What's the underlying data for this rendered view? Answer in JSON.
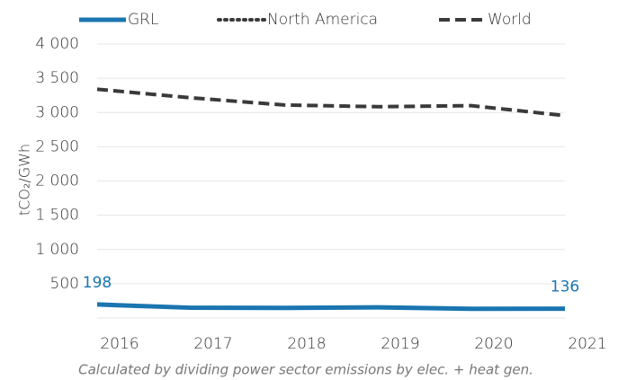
{
  "chart_data": {
    "type": "line",
    "x": [
      2016,
      2017,
      2018,
      2019,
      2020,
      2021
    ],
    "xlim": [
      2016,
      2021
    ],
    "y_label": "tCO₂/GWh",
    "ylim": [
      0,
      4000
    ],
    "yticks": [
      500,
      {
        "value": 1000,
        "label": "1 000"
      },
      {
        "value": 1500,
        "label": "1 500"
      },
      {
        "value": 2000,
        "label": "2 000"
      },
      {
        "value": 2500,
        "label": "2 500"
      },
      {
        "value": 3000,
        "label": "3 000"
      },
      {
        "value": 3500,
        "label": "3 500"
      },
      {
        "value": 4000,
        "label": "4 000"
      }
    ],
    "grid": true,
    "legend": "top",
    "series": [
      {
        "name": "GRL",
        "color": "#1a75b0",
        "dash": "solid",
        "values": [
          198,
          150,
          148,
          155,
          135,
          136
        ],
        "value_labels": [
          "198",
          null,
          null,
          null,
          null,
          "136"
        ]
      },
      {
        "name": "North America",
        "color": "#3a3a3a",
        "dash": "dotted",
        "values": [
          null,
          null,
          null,
          null,
          null,
          null
        ]
      },
      {
        "name": "World",
        "color": "#3a3a3a",
        "dash": "dashed",
        "values": [
          3340,
          3215,
          3110,
          3085,
          3100,
          2955
        ]
      }
    ],
    "footnote": "Calculated by dividing power sector emissions by elec. + heat gen."
  }
}
